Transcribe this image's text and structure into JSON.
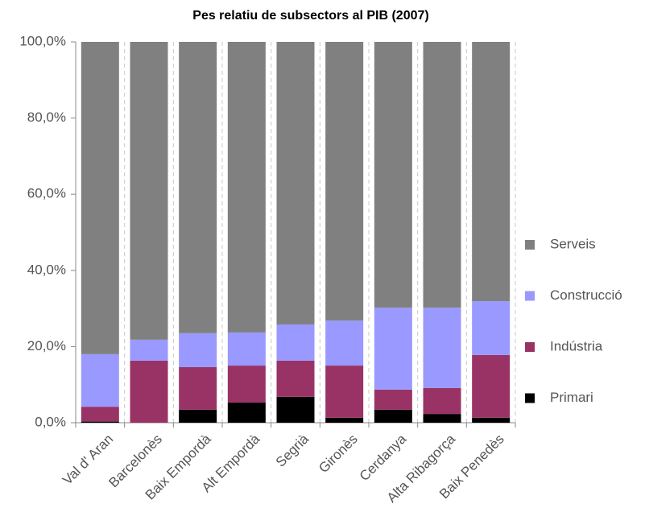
{
  "chart_data": {
    "type": "stacked_bar",
    "title": "Pes relatiu de subsectors al PIB (2007)",
    "categories": [
      "Val d' Aran",
      "Barcelonès",
      "Baix Empordà",
      "Alt Empordà",
      "Segrià",
      "Gironès",
      "Cerdanya",
      "Alta Ribagorça",
      "Baix Penedès"
    ],
    "series": [
      {
        "name": "Primari",
        "color": "#000000",
        "values": [
          0.3,
          0,
          3.4,
          5.3,
          6.8,
          1.3,
          3.4,
          2.3,
          1.3
        ]
      },
      {
        "name": "Indústria",
        "color": "#993366",
        "values": [
          3.9,
          16.3,
          11.2,
          9.7,
          9.5,
          13.7,
          5.3,
          6.8,
          16.5
        ]
      },
      {
        "name": "Construcció",
        "color": "#9999ff",
        "values": [
          13.8,
          5.5,
          8.9,
          8.7,
          9.5,
          11.8,
          21.5,
          21.1,
          14.1
        ]
      },
      {
        "name": "Serveis",
        "color": "#808080",
        "values": [
          82.0,
          78.2,
          76.5,
          76.3,
          74.2,
          73.2,
          69.8,
          69.8,
          68.1
        ]
      }
    ],
    "ylim": [
      0,
      100
    ],
    "yticks": [
      {
        "value": 0,
        "label": "0,0%"
      },
      {
        "value": 20,
        "label": "20,0%"
      },
      {
        "value": 40,
        "label": "40,0%"
      },
      {
        "value": 60,
        "label": "60,0%"
      },
      {
        "value": 80,
        "label": "80,0%"
      },
      {
        "value": 100,
        "label": "100,0%"
      }
    ],
    "legend": "right",
    "grid": true
  }
}
